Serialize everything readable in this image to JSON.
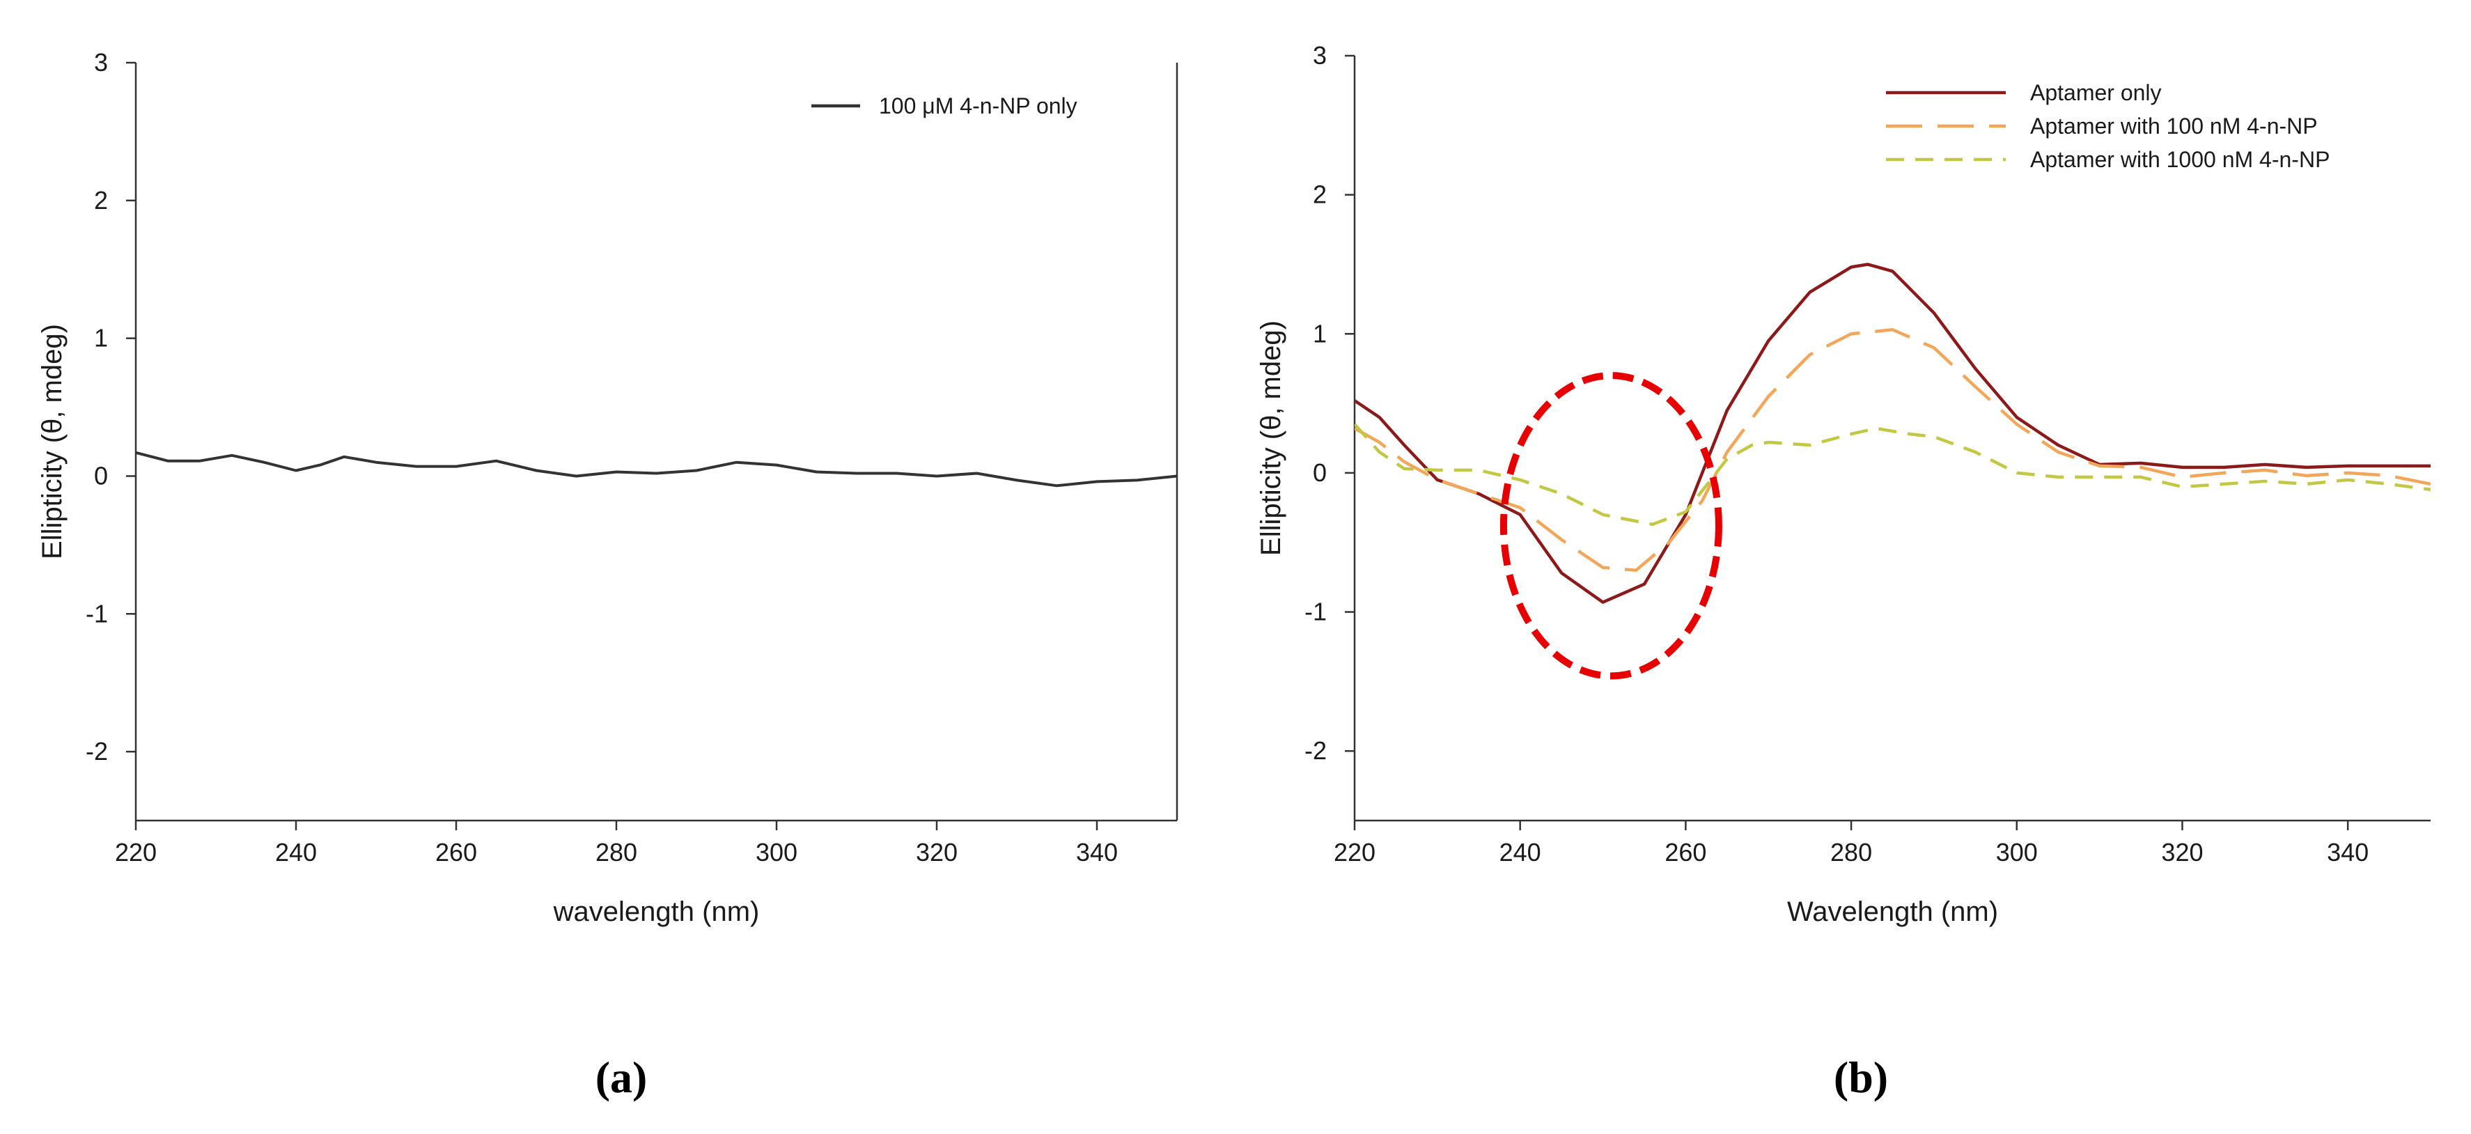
{
  "chart_data": [
    {
      "type": "line",
      "panel_label": "(a)",
      "xlabel": "wavelength (nm)",
      "ylabel": "Ellipticity (θ, mdeg)",
      "xlim": [
        220,
        350
      ],
      "ylim": [
        -2.5,
        3
      ],
      "xticks": [
        220,
        240,
        260,
        280,
        300,
        320,
        340
      ],
      "yticks": [
        -2,
        -1,
        0,
        1,
        2,
        3
      ],
      "legend_position": "top-right",
      "series": [
        {
          "name": "100 μM 4-n-NP only",
          "color": "#333333",
          "dash": "solid",
          "x": [
            220,
            224,
            228,
            232,
            236,
            240,
            243,
            246,
            250,
            255,
            260,
            265,
            270,
            275,
            280,
            285,
            290,
            295,
            300,
            305,
            310,
            315,
            320,
            325,
            330,
            335,
            340,
            345,
            350
          ],
          "y": [
            0.17,
            0.11,
            0.11,
            0.15,
            0.1,
            0.04,
            0.08,
            0.14,
            0.1,
            0.07,
            0.07,
            0.11,
            0.04,
            0.0,
            0.03,
            0.02,
            0.04,
            0.1,
            0.08,
            0.03,
            0.02,
            0.02,
            0.0,
            0.02,
            -0.03,
            -0.07,
            -0.04,
            -0.03,
            0.0
          ]
        }
      ]
    },
    {
      "type": "line",
      "panel_label": "(b)",
      "xlabel": "Wavelength (nm)",
      "ylabel": "Ellipticity (θ, mdeg)",
      "xlim": [
        220,
        350
      ],
      "ylim": [
        -2.5,
        3
      ],
      "xticks": [
        220,
        240,
        260,
        280,
        300,
        320,
        340
      ],
      "yticks": [
        -2,
        -1,
        0,
        1,
        2,
        3
      ],
      "legend_position": "top-right",
      "annotation": "red dashed ellipse around 240-265 nm minimum",
      "highlight_ellipse": {
        "x_center": 251,
        "x_radius": 13,
        "y_center": -0.38,
        "y_radius": 1.08,
        "color": "#e60000"
      },
      "series": [
        {
          "name": "Aptamer only",
          "color": "#8b1a1a",
          "dash": "solid",
          "x": [
            220,
            223,
            226,
            230,
            235,
            240,
            245,
            250,
            255,
            260,
            265,
            270,
            275,
            280,
            282,
            285,
            290,
            295,
            300,
            305,
            310,
            315,
            320,
            325,
            330,
            335,
            340,
            345,
            350
          ],
          "y": [
            0.52,
            0.4,
            0.2,
            -0.05,
            -0.15,
            -0.3,
            -0.72,
            -0.93,
            -0.8,
            -0.3,
            0.45,
            0.95,
            1.3,
            1.48,
            1.5,
            1.45,
            1.15,
            0.75,
            0.4,
            0.2,
            0.06,
            0.07,
            0.04,
            0.04,
            0.06,
            0.04,
            0.05,
            0.05,
            0.05
          ]
        },
        {
          "name": "Aptamer with 100 nM 4-n-NP",
          "color": "#f2a65a",
          "dash": "long",
          "x": [
            220,
            223,
            226,
            230,
            235,
            240,
            245,
            250,
            254,
            258,
            262,
            265,
            270,
            275,
            280,
            285,
            290,
            295,
            300,
            305,
            310,
            315,
            320,
            325,
            330,
            335,
            340,
            345,
            350
          ],
          "y": [
            0.32,
            0.22,
            0.08,
            -0.05,
            -0.15,
            -0.25,
            -0.48,
            -0.68,
            -0.7,
            -0.5,
            -0.2,
            0.15,
            0.55,
            0.85,
            1.0,
            1.03,
            0.9,
            0.62,
            0.35,
            0.15,
            0.05,
            0.04,
            -0.03,
            0.0,
            0.02,
            -0.02,
            0.0,
            -0.02,
            -0.08
          ]
        },
        {
          "name": "Aptamer with 1000 nM 4-n-NP",
          "color": "#c2c843",
          "dash": "short",
          "x": [
            220,
            223,
            226,
            230,
            235,
            240,
            245,
            250,
            256,
            260,
            265,
            268,
            270,
            275,
            280,
            283,
            287,
            290,
            295,
            300,
            305,
            310,
            315,
            320,
            325,
            330,
            335,
            340,
            345,
            350
          ],
          "y": [
            0.35,
            0.15,
            0.03,
            0.02,
            0.02,
            -0.05,
            -0.15,
            -0.3,
            -0.37,
            -0.28,
            0.1,
            0.2,
            0.22,
            0.2,
            0.28,
            0.32,
            0.28,
            0.26,
            0.15,
            0.0,
            -0.03,
            -0.03,
            -0.03,
            -0.1,
            -0.08,
            -0.06,
            -0.08,
            -0.05,
            -0.08,
            -0.12
          ]
        }
      ]
    }
  ]
}
